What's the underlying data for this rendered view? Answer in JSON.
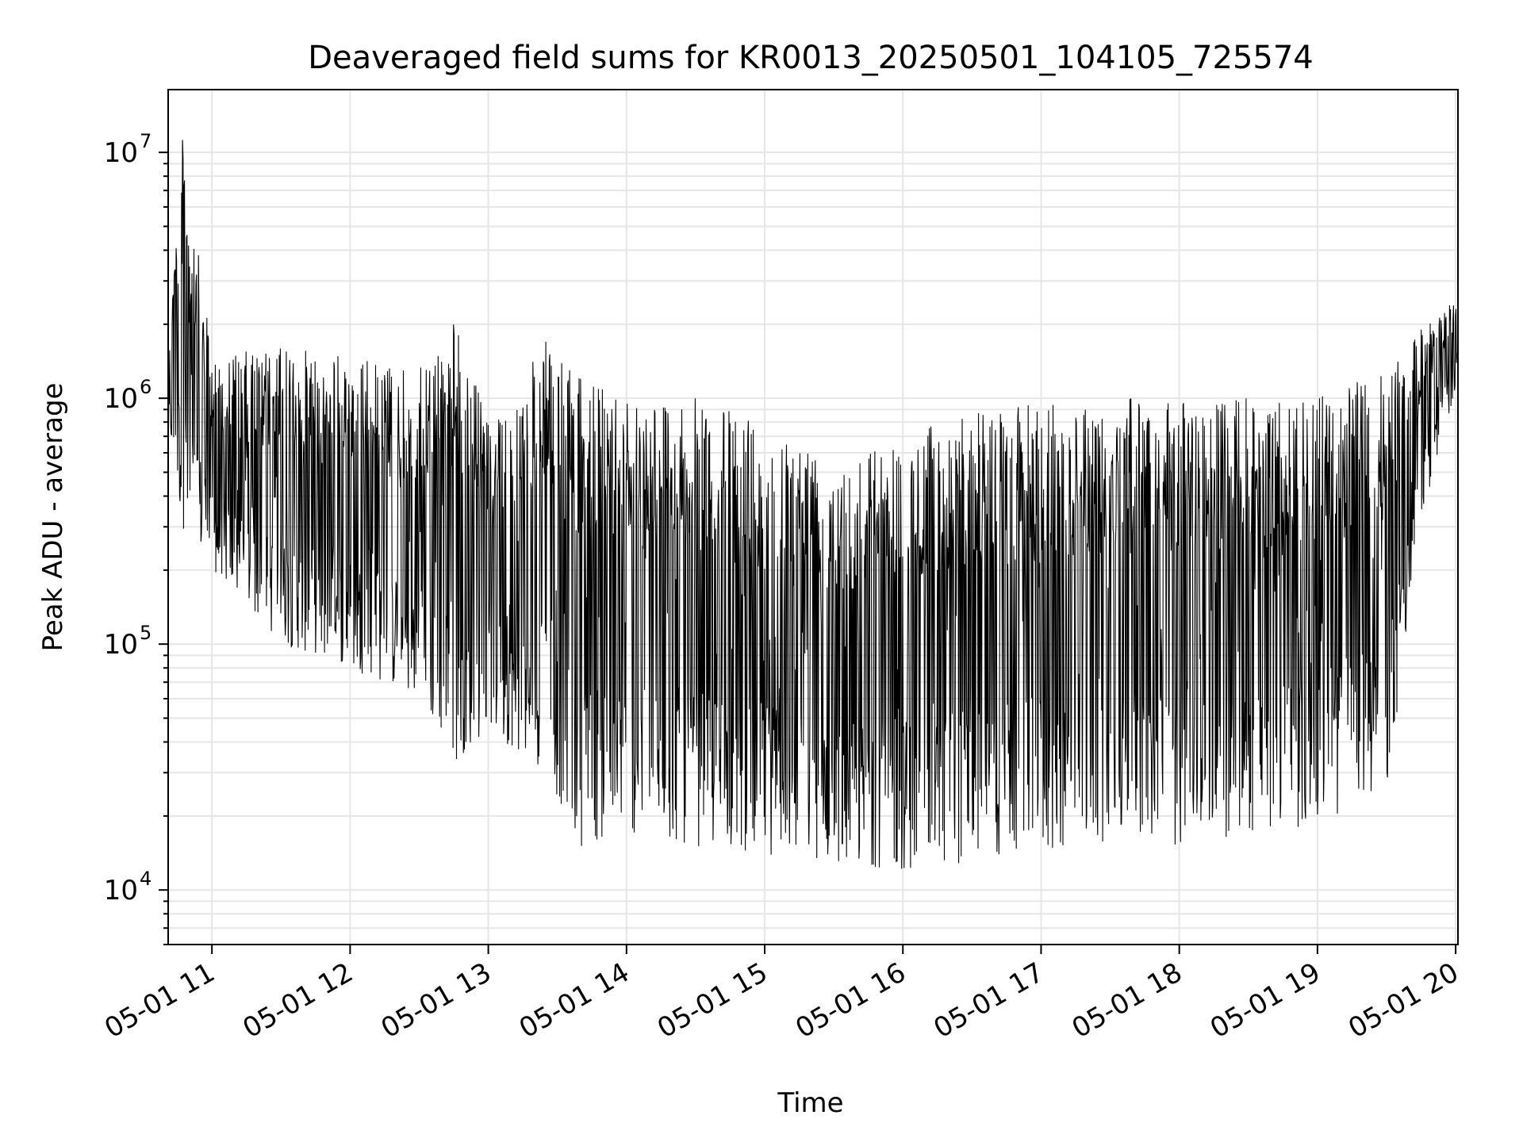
{
  "chart_data": {
    "type": "line",
    "title": "Deaveraged field sums for KR0013_20250501_104105_725574",
    "xlabel": "Time",
    "ylabel": "Peak ADU - average",
    "yscale": "log",
    "ylim": [
      6000,
      18000000
    ],
    "xlim": [
      "2025-05-01 10:41",
      "2025-05-01 20:01"
    ],
    "x_tick_labels": [
      "05-01 11",
      "05-01 12",
      "05-01 13",
      "05-01 14",
      "05-01 15",
      "05-01 16",
      "05-01 17",
      "05-01 18",
      "05-01 19",
      "05-01 20"
    ],
    "y_tick_labels": [
      {
        "base": "10",
        "exp": "4"
      },
      {
        "base": "10",
        "exp": "5"
      },
      {
        "base": "10",
        "exp": "6"
      },
      {
        "base": "10",
        "exp": "7"
      }
    ],
    "grid": true,
    "line_color": "#000000",
    "grid_color": "#e6e6e6",
    "series": [
      {
        "envelope": [
          {
            "x": "2025-05-01 10:41",
            "high": 1800000,
            "low": 800000
          },
          {
            "x": "2025-05-01 10:47",
            "high": 12000000,
            "low": 300000
          },
          {
            "x": "2025-05-01 11:00",
            "high": 1500000,
            "low": 200000
          },
          {
            "x": "2025-05-01 11:30",
            "high": 1600000,
            "low": 100000
          },
          {
            "x": "2025-05-01 12:00",
            "high": 1500000,
            "low": 80000
          },
          {
            "x": "2025-05-01 12:30",
            "high": 1300000,
            "low": 60000
          },
          {
            "x": "2025-05-01 12:45",
            "high": 2200000,
            "low": 33000
          },
          {
            "x": "2025-05-01 13:00",
            "high": 800000,
            "low": 45000
          },
          {
            "x": "2025-05-01 13:25",
            "high": 1700000,
            "low": 30000
          },
          {
            "x": "2025-05-01 13:40",
            "high": 1200000,
            "low": 15000
          },
          {
            "x": "2025-05-01 14:00",
            "high": 1100000,
            "low": 17000
          },
          {
            "x": "2025-05-01 14:30",
            "high": 1000000,
            "low": 15000
          },
          {
            "x": "2025-05-01 15:00",
            "high": 800000,
            "low": 14000
          },
          {
            "x": "2025-05-01 15:30",
            "high": 600000,
            "low": 13000
          },
          {
            "x": "2025-05-01 16:00",
            "high": 700000,
            "low": 12000
          },
          {
            "x": "2025-05-01 16:30",
            "high": 900000,
            "low": 13000
          },
          {
            "x": "2025-05-01 17:00",
            "high": 950000,
            "low": 14000
          },
          {
            "x": "2025-05-01 17:30",
            "high": 1000000,
            "low": 16000
          },
          {
            "x": "2025-05-01 18:00",
            "high": 1000000,
            "low": 15000
          },
          {
            "x": "2025-05-01 18:30",
            "high": 1000000,
            "low": 17000
          },
          {
            "x": "2025-05-01 19:00",
            "high": 1000000,
            "low": 18000
          },
          {
            "x": "2025-05-01 19:30",
            "high": 1300000,
            "low": 25000
          },
          {
            "x": "2025-05-01 19:45",
            "high": 1900000,
            "low": 300000
          },
          {
            "x": "2025-05-01 20:01",
            "high": 2700000,
            "low": 1200000
          }
        ]
      }
    ]
  }
}
